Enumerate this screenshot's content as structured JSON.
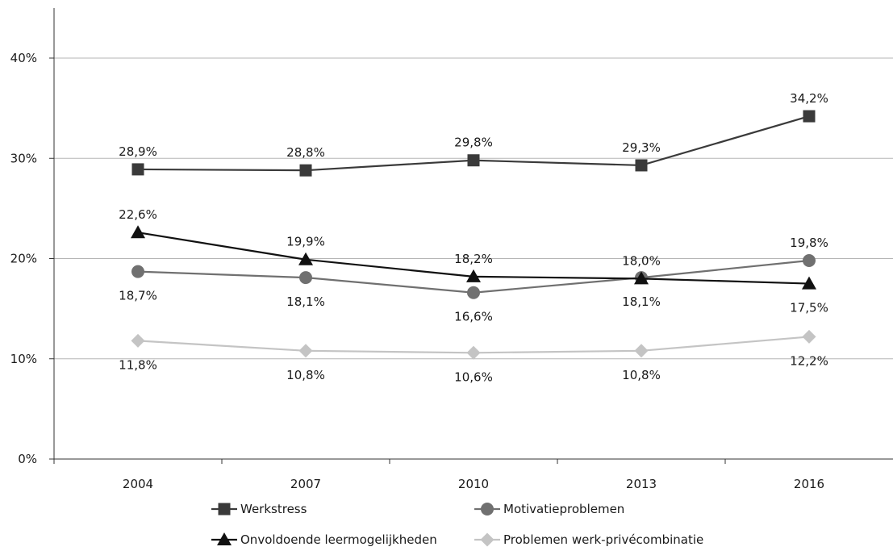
{
  "chart_data": {
    "type": "line",
    "title": "",
    "xlabel": "",
    "ylabel": "",
    "categories": [
      "2004",
      "2007",
      "2010",
      "2013",
      "2016"
    ],
    "ylim": [
      0,
      40
    ],
    "y_ticks": [
      0,
      10,
      20,
      30,
      40
    ],
    "y_tick_labels": [
      "0%",
      "10%",
      "20%",
      "30%",
      "40%"
    ],
    "grid": "horizontal",
    "legend_position": "bottom",
    "series": [
      {
        "name": "Werkstress",
        "values": [
          28.9,
          28.8,
          29.8,
          29.3,
          34.2
        ],
        "labels": [
          "28,9%",
          "28,8%",
          "29,8%",
          "29,3%",
          "34,2%"
        ],
        "label_position": [
          "above",
          "above",
          "above",
          "above",
          "above"
        ],
        "color": "#3a3a3a",
        "marker": "square"
      },
      {
        "name": "Motivatieproblemen",
        "values": [
          18.7,
          18.1,
          16.6,
          18.1,
          19.8
        ],
        "labels": [
          "18,7%",
          "18,1%",
          "16,6%",
          "18,1%",
          "19,8%"
        ],
        "label_position": [
          "below",
          "below",
          "below",
          "below",
          "above"
        ],
        "color": "#707070",
        "marker": "circle"
      },
      {
        "name": "Onvoldoende leermogelijkheden",
        "values": [
          22.6,
          19.9,
          18.2,
          18.0,
          17.5
        ],
        "labels": [
          "22,6%",
          "19,9%",
          "18,2%",
          "18,0%",
          "17,5%"
        ],
        "label_position": [
          "above",
          "above",
          "above",
          "above",
          "below"
        ],
        "color": "#111111",
        "marker": "triangle"
      },
      {
        "name": "Problemen werk-privécombinatie",
        "values": [
          11.8,
          10.8,
          10.6,
          10.8,
          12.2
        ],
        "labels": [
          "11,8%",
          "10,8%",
          "10,6%",
          "10,8%",
          "12,2%"
        ],
        "label_position": [
          "below",
          "below",
          "below",
          "below",
          "below"
        ],
        "color": "#c4c4c4",
        "marker": "diamond"
      }
    ]
  }
}
